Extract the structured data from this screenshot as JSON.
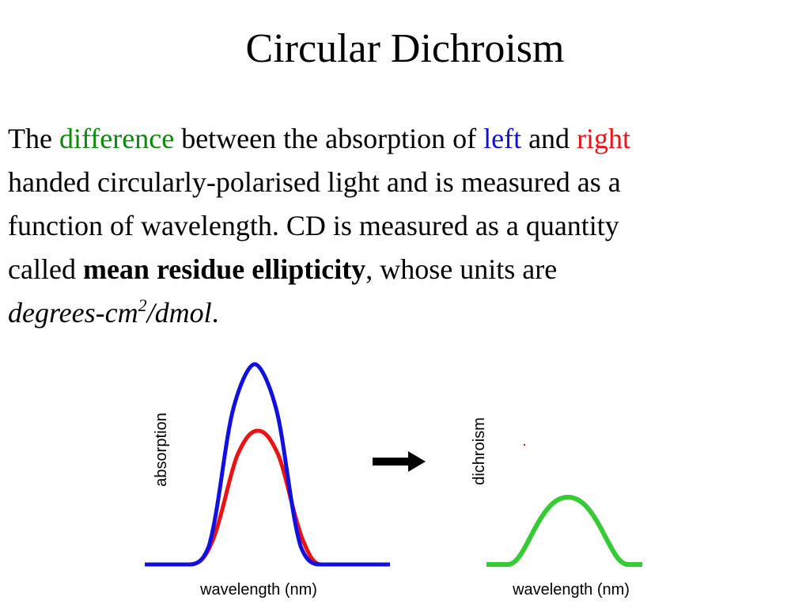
{
  "slide": {
    "title": "Circular Dichroism",
    "para": {
      "l1_the": "The ",
      "l1_difference": "difference",
      "l1_between": " between the absorption of ",
      "l1_left": "left",
      "l1_and": " and ",
      "l1_right": "right",
      "l2": "handed circularly-polarised light and is measured as a",
      "l3": "function of wavelength. CD is measured as a quantity",
      "l4_called": "called ",
      "l4_mre": "mean residue ellipticity",
      "l4_rest": ", whose units are",
      "l5_units": "degrees-cm",
      "l5_sup": "2",
      "l5_per": "/dmol",
      "l5_end": "."
    }
  },
  "figure": {
    "absorption_plot": {
      "ylabel": "absorption",
      "xlabel": "wavelength (nm)"
    },
    "dichroism_plot": {
      "ylabel": "dichroism",
      "xlabel": "wavelength (nm)"
    },
    "arrow": "right-arrow-icon"
  },
  "colors": {
    "difference": "#0a8a0a",
    "left": "#1010e0",
    "right": "#ee1111",
    "left_curve": "#1010e0",
    "right_curve": "#ee1111",
    "dichroism_curve": "#33cc33"
  }
}
